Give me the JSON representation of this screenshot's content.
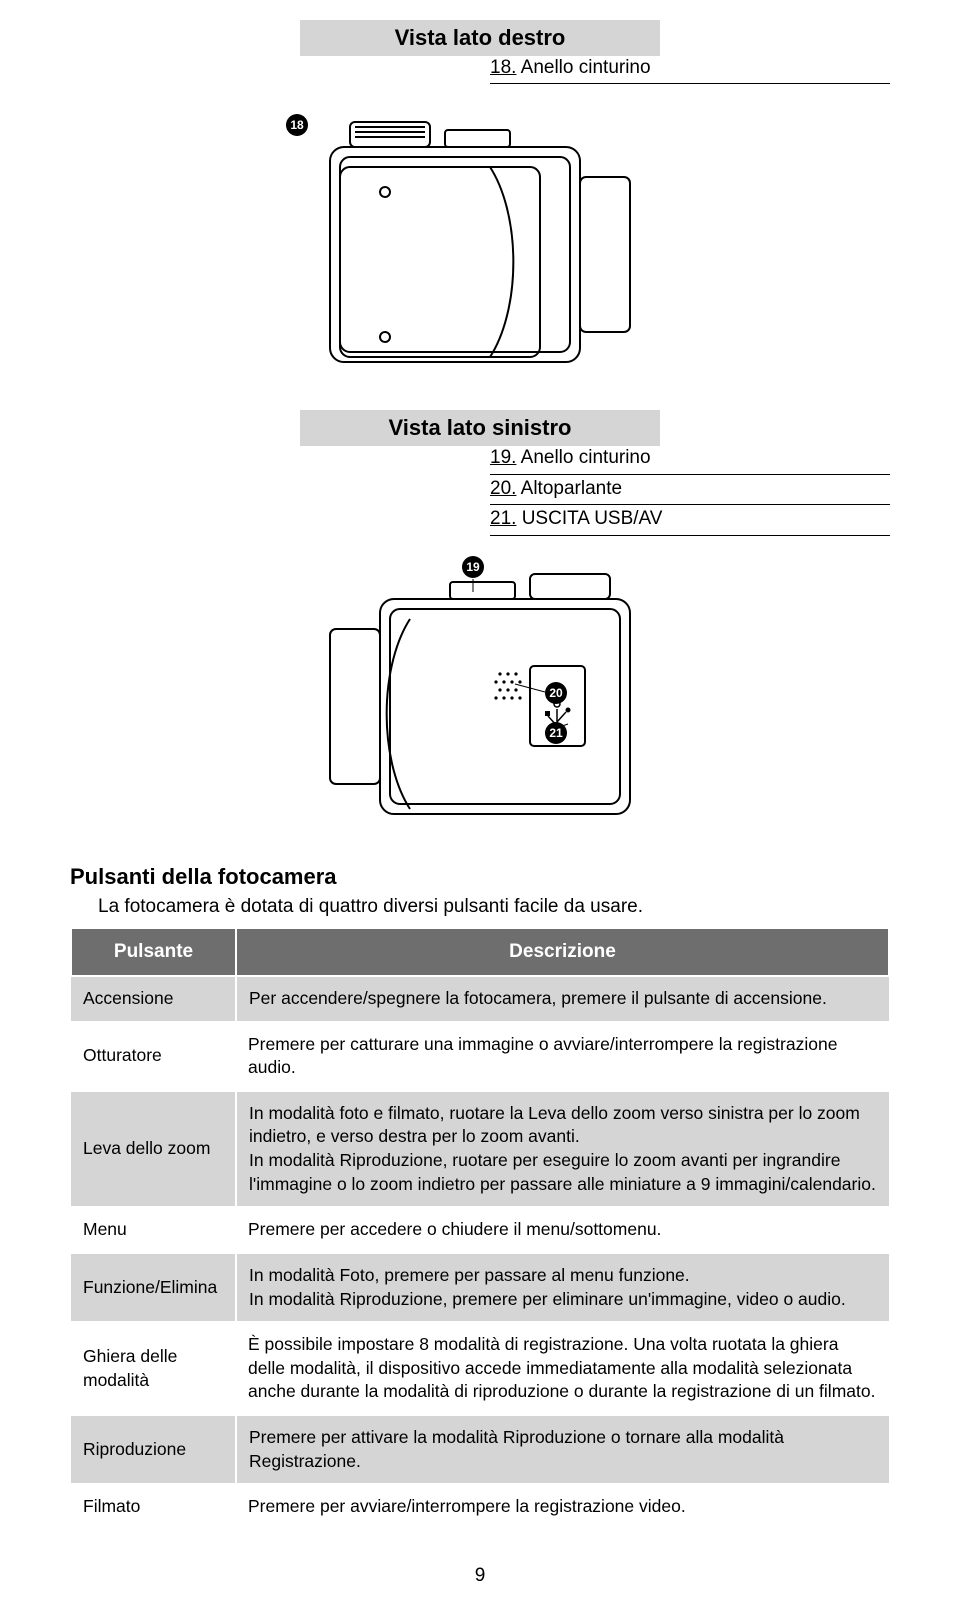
{
  "sections": {
    "right_view_header": "Vista lato destro",
    "left_view_header": "Vista lato sinistro"
  },
  "right_labels": [
    {
      "num": "18.",
      "text": "Anello cinturino"
    }
  ],
  "left_labels": [
    {
      "num": "19.",
      "text": "Anello cinturino"
    },
    {
      "num": "20.",
      "text": "Altoparlante"
    },
    {
      "num": "21.",
      "text": "USCITA USB/AV"
    }
  ],
  "callouts": {
    "c18": "18",
    "c19": "19",
    "c20": "20",
    "c21": "21"
  },
  "buttons_section": {
    "heading": "Pulsanti della fotocamera",
    "sub": "La fotocamera è dotata di quattro diversi pulsanti facile da usare."
  },
  "table": {
    "col1": "Pulsante",
    "col2": "Descrizione",
    "rows": [
      {
        "name": "Accensione",
        "desc": "Per accendere/spegnere la fotocamera, premere il pulsante di accensione."
      },
      {
        "name": "Otturatore",
        "desc": "Premere per catturare una immagine o avviare/interrompere la registrazione audio."
      },
      {
        "name": "Leva dello zoom",
        "desc": "In modalità foto e filmato, ruotare la Leva dello zoom verso sinistra per lo zoom indietro, e verso destra per lo zoom avanti.\nIn modalità Riproduzione, ruotare per eseguire lo zoom avanti per ingrandire l'immagine o lo zoom indietro per passare alle miniature a 9 immagini/calendario."
      },
      {
        "name": "Menu",
        "desc": "Premere per accedere o chiudere il menu/sottomenu."
      },
      {
        "name": "Funzione/Elimina",
        "desc": "In modalità Foto, premere per passare al menu funzione.\nIn modalità Riproduzione, premere per eliminare un'immagine, video o audio."
      },
      {
        "name": "Ghiera delle modalità",
        "desc": "È possibile impostare 8 modalità di registrazione. Una volta ruotata la ghiera delle modalità, il dispositivo accede immediatamente alla modalità selezionata anche durante la modalità di riproduzione o durante la registrazione di un filmato."
      },
      {
        "name": "Riproduzione",
        "desc": "Premere per attivare la modalità Riproduzione o tornare alla modalità Registrazione."
      },
      {
        "name": "Filmato",
        "desc": "Premere per avviare/interrompere la registrazione video."
      }
    ]
  },
  "page_number": "9",
  "colors": {
    "header_bg": "#d5d5d5",
    "th_bg": "#6e6e6e",
    "th_fg": "#ffffff",
    "shade_bg": "#d5d5d5",
    "text": "#000000"
  }
}
